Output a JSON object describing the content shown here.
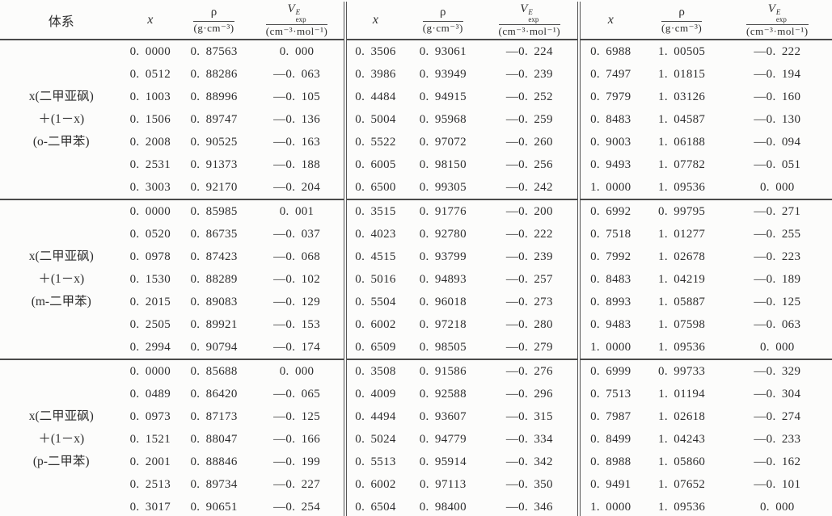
{
  "table": {
    "header": {
      "system": "体系",
      "x": "x",
      "rho": "ρ",
      "rho_unit": "(g·cm⁻³)",
      "v": "V",
      "v_sup": "E",
      "v_sub": "exp",
      "v_unit": "(cm⁻³·mol⁻¹)"
    },
    "groups": [
      {
        "system_lines": [
          "x(二甲亚砜)",
          "＋(1－x)",
          "(o-二甲苯)"
        ],
        "blocks": [
          [
            [
              "0.0000",
              "0.87563",
              "0.000"
            ],
            [
              "0.0512",
              "0.88286",
              "-0.063"
            ],
            [
              "0.1003",
              "0.88996",
              "-0.105"
            ],
            [
              "0.1506",
              "0.89747",
              "-0.136"
            ],
            [
              "0.2008",
              "0.90525",
              "-0.163"
            ],
            [
              "0.2531",
              "0.91373",
              "-0.188"
            ],
            [
              "0.3003",
              "0.92170",
              "-0.204"
            ]
          ],
          [
            [
              "0.3506",
              "0.93061",
              "-0.224"
            ],
            [
              "0.3986",
              "0.93949",
              "-0.239"
            ],
            [
              "0.4484",
              "0.94915",
              "-0.252"
            ],
            [
              "0.5004",
              "0.95968",
              "-0.259"
            ],
            [
              "0.5522",
              "0.97072",
              "-0.260"
            ],
            [
              "0.6005",
              "0.98150",
              "-0.256"
            ],
            [
              "0.6500",
              "0.99305",
              "-0.242"
            ]
          ],
          [
            [
              "0.6988",
              "1.00505",
              "-0.222"
            ],
            [
              "0.7497",
              "1.01815",
              "-0.194"
            ],
            [
              "0.7979",
              "1.03126",
              "-0.160"
            ],
            [
              "0.8483",
              "1.04587",
              "-0.130"
            ],
            [
              "0.9003",
              "1.06188",
              "-0.094"
            ],
            [
              "0.9493",
              "1.07782",
              "-0.051"
            ],
            [
              "1.0000",
              "1.09536",
              "0.000"
            ]
          ]
        ]
      },
      {
        "system_lines": [
          "x(二甲亚砜)",
          "＋(1－x)",
          "(m-二甲苯)"
        ],
        "blocks": [
          [
            [
              "0.0000",
              "0.85985",
              "0.001"
            ],
            [
              "0.0520",
              "0.86735",
              "-0.037"
            ],
            [
              "0.0978",
              "0.87423",
              "-0.068"
            ],
            [
              "0.1530",
              "0.88289",
              "-0.102"
            ],
            [
              "0.2015",
              "0.89083",
              "-0.129"
            ],
            [
              "0.2505",
              "0.89921",
              "-0.153"
            ],
            [
              "0.2994",
              "0.90794",
              "-0.174"
            ]
          ],
          [
            [
              "0.3515",
              "0.91776",
              "-0.200"
            ],
            [
              "0.4023",
              "0.92780",
              "-0.222"
            ],
            [
              "0.4515",
              "0.93799",
              "-0.239"
            ],
            [
              "0.5016",
              "0.94893",
              "-0.257"
            ],
            [
              "0.5504",
              "0.96018",
              "-0.273"
            ],
            [
              "0.6002",
              "0.97218",
              "-0.280"
            ],
            [
              "0.6509",
              "0.98505",
              "-0.279"
            ]
          ],
          [
            [
              "0.6992",
              "0.99795",
              "-0.271"
            ],
            [
              "0.7518",
              "1.01277",
              "-0.255"
            ],
            [
              "0.7992",
              "1.02678",
              "-0.223"
            ],
            [
              "0.8483",
              "1.04219",
              "-0.189"
            ],
            [
              "0.8993",
              "1.05887",
              "-0.125"
            ],
            [
              "0.9483",
              "1.07598",
              "-0.063"
            ],
            [
              "1.0000",
              "1.09536",
              "0.000"
            ]
          ]
        ]
      },
      {
        "system_lines": [
          "x(二甲亚砜)",
          "＋(1－x)",
          "(p-二甲苯)"
        ],
        "blocks": [
          [
            [
              "0.0000",
              "0.85688",
              "0.000"
            ],
            [
              "0.0489",
              "0.86420",
              "-0.065"
            ],
            [
              "0.0973",
              "0.87173",
              "-0.125"
            ],
            [
              "0.1521",
              "0.88047",
              "-0.166"
            ],
            [
              "0.2001",
              "0.88846",
              "-0.199"
            ],
            [
              "0.2513",
              "0.89734",
              "-0.227"
            ],
            [
              "0.3017",
              "0.90651",
              "-0.254"
            ]
          ],
          [
            [
              "0.3508",
              "0.91586",
              "-0.276"
            ],
            [
              "0.4009",
              "0.92588",
              "-0.296"
            ],
            [
              "0.4494",
              "0.93607",
              "-0.315"
            ],
            [
              "0.5024",
              "0.94779",
              "-0.334"
            ],
            [
              "0.5513",
              "0.95914",
              "-0.342"
            ],
            [
              "0.6002",
              "0.97113",
              "-0.350"
            ],
            [
              "0.6504",
              "0.98400",
              "-0.346"
            ]
          ],
          [
            [
              "0.6999",
              "0.99733",
              "-0.329"
            ],
            [
              "0.7513",
              "1.01194",
              "-0.304"
            ],
            [
              "0.7987",
              "1.02618",
              "-0.274"
            ],
            [
              "0.8499",
              "1.04243",
              "-0.233"
            ],
            [
              "0.8988",
              "1.05860",
              "-0.162"
            ],
            [
              "0.9491",
              "1.07652",
              "-0.101"
            ],
            [
              "1.0000",
              "1.09536",
              "0.000"
            ]
          ]
        ]
      }
    ]
  }
}
